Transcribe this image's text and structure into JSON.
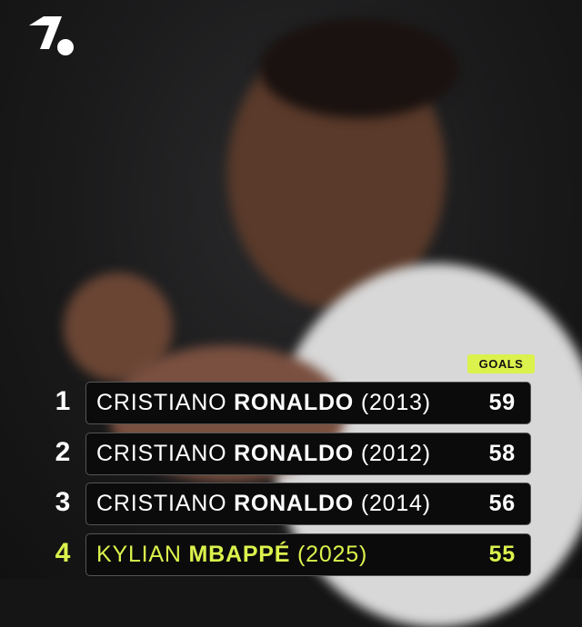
{
  "accent_color": "#dcf24c",
  "logo": {
    "icon": "onefootball-logo-icon"
  },
  "header": {
    "goals_label": "GOALS"
  },
  "rows": [
    {
      "rank": "1",
      "first": "CRISTIANO",
      "last": "RONALDO",
      "year": "(2013)",
      "goals": "59",
      "highlight": false
    },
    {
      "rank": "2",
      "first": "CRISTIANO",
      "last": "RONALDO",
      "year": "(2012)",
      "goals": "58",
      "highlight": false
    },
    {
      "rank": "3",
      "first": "CRISTIANO",
      "last": "RONALDO",
      "year": "(2014)",
      "goals": "56",
      "highlight": false
    },
    {
      "rank": "4",
      "first": "KYLIAN",
      "last": "MBAPPÉ",
      "year": "(2025)",
      "goals": "55",
      "highlight": true
    }
  ]
}
